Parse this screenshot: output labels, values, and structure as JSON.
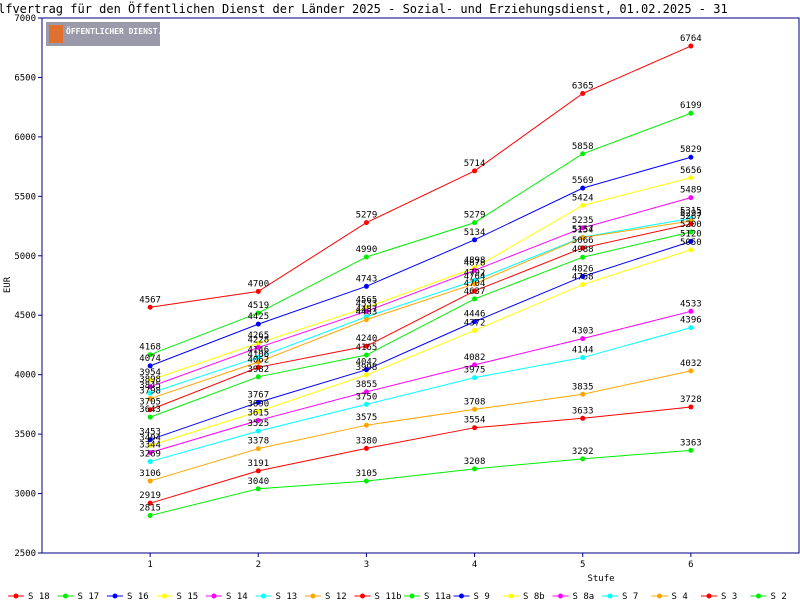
{
  "chart_data": {
    "type": "line",
    "title": "lfvertrag für den Öffentlichen Dienst der Länder 2025 - Sozial- und Erziehungsdienst, 01.02.2025 - 31",
    "logo": "ÖFFENTLICHER DIENST.INFO",
    "xlabel": "Stufe",
    "ylabel": "EUR",
    "x": [
      1,
      2,
      3,
      4,
      5,
      6
    ],
    "xlim": [
      0,
      7
    ],
    "xticks": [
      1,
      2,
      3,
      4,
      5,
      6
    ],
    "ylim": [
      2500,
      7000
    ],
    "yticks": [
      2500,
      3000,
      3500,
      4000,
      4500,
      5000,
      5500,
      6000,
      6500,
      7000
    ],
    "series": [
      {
        "name": "S_18",
        "color": "#ff0000",
        "values": [
          4567,
          4700,
          5279,
          5714,
          6365,
          6764
        ]
      },
      {
        "name": "S_17",
        "color": "#00ee00",
        "values": [
          4168,
          4519,
          4990,
          5279,
          5858,
          6199
        ]
      },
      {
        "name": "S_16",
        "color": "#0000ff",
        "values": [
          4074,
          4425,
          4743,
          5134,
          5569,
          5829
        ]
      },
      {
        "name": "S_15",
        "color": "#ffff00",
        "values": [
          3954,
          4265,
          4565,
          4898,
          5424,
          5656
        ]
      },
      {
        "name": "S_14",
        "color": "#ff00ff",
        "values": [
          3898,
          4228,
          4533,
          4878,
          5235,
          5489
        ]
      },
      {
        "name": "S_13",
        "color": "#00ffff",
        "values": [
          3845,
          4146,
          4487,
          4792,
          5157,
          5315
        ]
      },
      {
        "name": "S_12",
        "color": "#ffa500",
        "values": [
          3798,
          4106,
          4463,
          4764,
          5154,
          5293
        ]
      },
      {
        "name": "S_11b",
        "color": "#ff0000",
        "values": [
          3705,
          4062,
          4240,
          4704,
          5066,
          5267
        ]
      },
      {
        "name": "S_11a",
        "color": "#00ee00",
        "values": [
          3643,
          3982,
          4165,
          4637,
          4988,
          5200
        ]
      },
      {
        "name": "S_9",
        "color": "#0000ff",
        "values": [
          3453,
          3767,
          4042,
          4446,
          4826,
          5120
        ]
      },
      {
        "name": "S_8b",
        "color": "#ffff00",
        "values": [
          3404,
          3690,
          3998,
          4372,
          4758,
          5050
        ]
      },
      {
        "name": "S_8a",
        "color": "#ff00ff",
        "values": [
          3344,
          3615,
          3855,
          4082,
          4303,
          4533
        ]
      },
      {
        "name": "S_7",
        "color": "#00ffff",
        "values": [
          3269,
          3525,
          3750,
          3975,
          4144,
          4396
        ]
      },
      {
        "name": "S_4",
        "color": "#ffa500",
        "values": [
          3106,
          3378,
          3575,
          3708,
          3835,
          4032
        ]
      },
      {
        "name": "S_3",
        "color": "#ff0000",
        "values": [
          2919,
          3191,
          3380,
          3554,
          3633,
          3728
        ]
      },
      {
        "name": "S_2",
        "color": "#00ee00",
        "values": [
          2815,
          3040,
          3105,
          3208,
          3292,
          3363
        ]
      }
    ]
  }
}
